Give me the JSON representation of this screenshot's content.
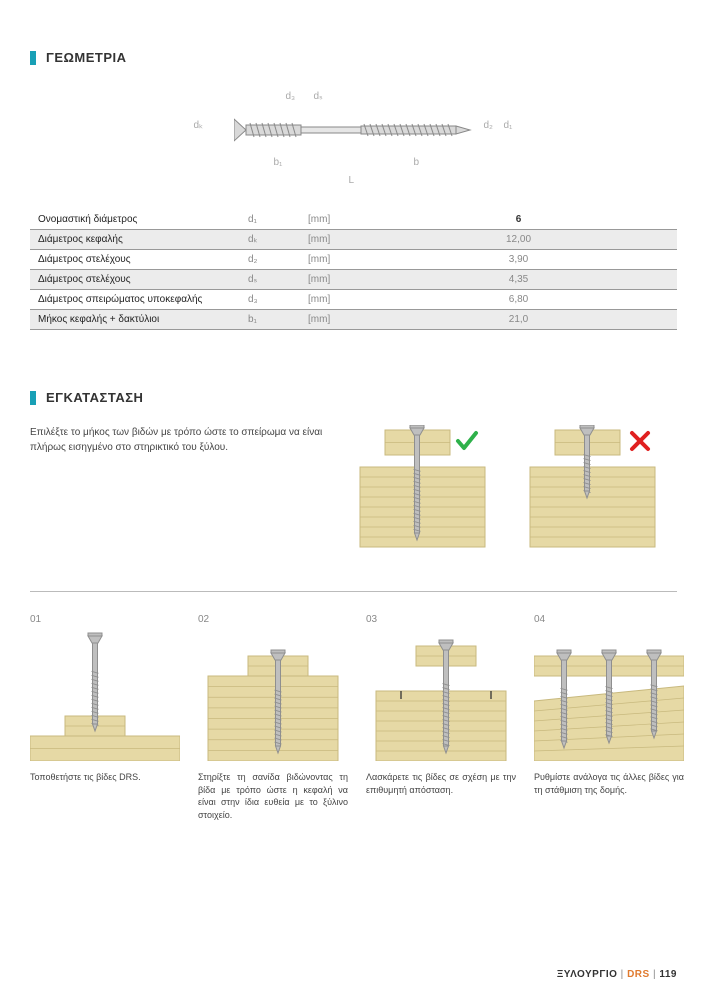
{
  "colors": {
    "accent": "#18a0b6",
    "wood": "#e6d9a5",
    "woodLine": "#c8b97e",
    "screw": "#bfbfbf",
    "screwDark": "#8f8f8f",
    "green": "#2eb14a",
    "red": "#e02020",
    "orange": "#e07a2e",
    "gray": "#888888"
  },
  "section1": {
    "title": "ΓΕΩΜΕΤΡΙΑ"
  },
  "diagram": {
    "labels": {
      "dk": "dₖ",
      "d3": "d₃",
      "ds": "dₛ",
      "d2": "d₂",
      "d1": "d₁",
      "b1": "b₁",
      "b": "b",
      "L": "L"
    }
  },
  "table": {
    "rows": [
      {
        "label": "Ονομαστική διάμετρος",
        "sym": "d₁",
        "unit": "[mm]",
        "val": "6",
        "shade": false,
        "valBold": true
      },
      {
        "label": "Διάμετρος κεφαλής",
        "sym": "dₖ",
        "unit": "[mm]",
        "val": "12,00",
        "shade": true
      },
      {
        "label": "Διάμετρος στελέχους",
        "sym": "d₂",
        "unit": "[mm]",
        "val": "3,90",
        "shade": false
      },
      {
        "label": "Διάμετρος στελέχους",
        "sym": "dₛ",
        "unit": "[mm]",
        "val": "4,35",
        "shade": true
      },
      {
        "label": "Διάμετρος σπειρώματος υποκεφαλής",
        "sym": "d₃",
        "unit": "[mm]",
        "val": "6,80",
        "shade": false
      },
      {
        "label": "Μήκος κεφαλής + δακτύλιοι",
        "sym": "b₁",
        "unit": "[mm]",
        "val": "21,0",
        "shade": true
      }
    ]
  },
  "section2": {
    "title": "ΕΓΚΑΤΑΣΤΑΣΗ"
  },
  "guideText": "Επιλέξτε το μήκος των βιδών με τρόπο ώστε το σπείρωμα να είναι πλήρως εισηγμένο στο στηρικτικό του ξύλου.",
  "steps": [
    {
      "num": "01",
      "caption": "Τοποθετήστε τις βίδες DRS."
    },
    {
      "num": "02",
      "caption": "Στηρίξτε τη σανίδα βιδώνοντας τη βίδα με τρόπο ώστε η κεφαλή να είναι στην ίδια ευθεία με το ξύλινο στοιχείο."
    },
    {
      "num": "03",
      "caption": "Λασκάρετε τις βίδες σε σχέση με την επιθυμητή απόσταση."
    },
    {
      "num": "04",
      "caption": "Ρυθμίστε ανάλογα τις άλλες βίδες για τη στάθμιση της δομής."
    }
  ],
  "footer": {
    "a": "ΞΥΛΟΥΡΓΙΟ",
    "sep": "|",
    "b": "DRS",
    "c": "119"
  }
}
